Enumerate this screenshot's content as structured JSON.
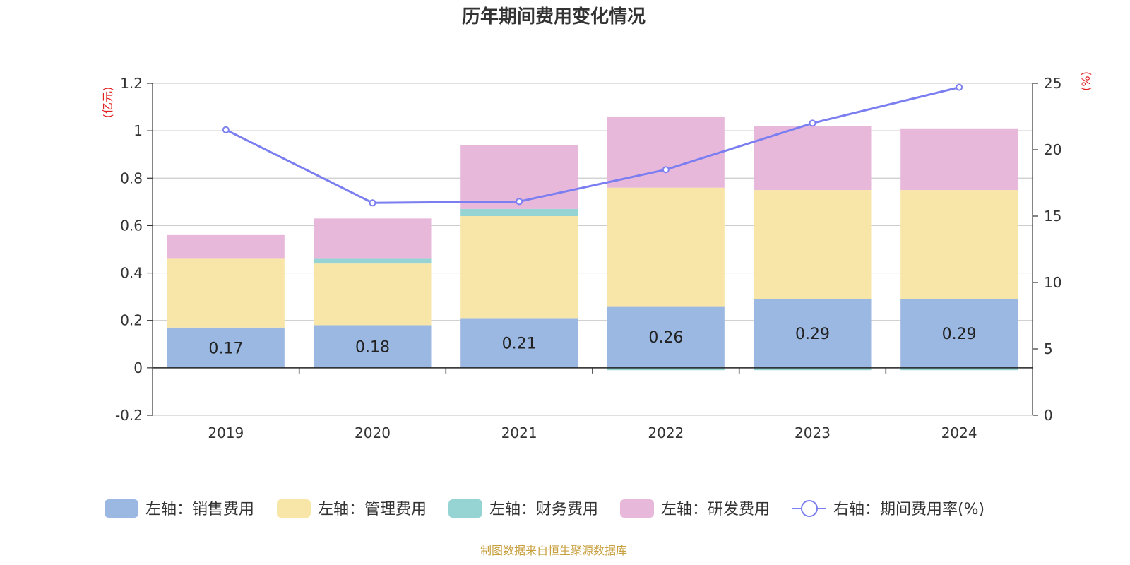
{
  "chart_data": {
    "type": "bar",
    "stacked": true,
    "title": "历年期间费用变化情况",
    "categories": [
      "2019",
      "2020",
      "2021",
      "2022",
      "2023",
      "2024"
    ],
    "left_axis": {
      "unit": "(亿元)",
      "ylim": [
        -0.2,
        1.2
      ],
      "ticks": [
        "-0.2",
        "0",
        "0.2",
        "0.4",
        "0.6",
        "0.8",
        "1",
        "1.2"
      ],
      "tick_values": [
        -0.2,
        0,
        0.2,
        0.4,
        0.6,
        0.8,
        1.0,
        1.2
      ]
    },
    "right_axis": {
      "unit": "(%)",
      "ylim": [
        0,
        25
      ],
      "ticks": [
        "0",
        "5",
        "10",
        "15",
        "20",
        "25"
      ],
      "tick_values": [
        0,
        5,
        10,
        15,
        20,
        25
      ]
    },
    "series": [
      {
        "name": "左轴：销售费用",
        "color": "#9bb8e2",
        "values": [
          0.17,
          0.18,
          0.21,
          0.26,
          0.29,
          0.29
        ],
        "labels": [
          "0.17",
          "0.18",
          "0.21",
          "0.26",
          "0.29",
          "0.29"
        ]
      },
      {
        "name": "左轴：管理费用",
        "color": "#f8e6a8",
        "values": [
          0.29,
          0.26,
          0.43,
          0.5,
          0.46,
          0.46
        ]
      },
      {
        "name": "左轴：财务费用",
        "color": "#96d4d4",
        "values": [
          0.0,
          0.02,
          0.03,
          -0.01,
          -0.01,
          -0.01
        ]
      },
      {
        "name": "左轴：研发费用",
        "color": "#e8b8da",
        "values": [
          0.1,
          0.17,
          0.27,
          0.3,
          0.27,
          0.26
        ]
      }
    ],
    "line": {
      "name": "右轴：期间费用率(%)",
      "color": "#7b7ef0",
      "values": [
        21.5,
        16.0,
        16.1,
        18.5,
        22.0,
        24.7
      ]
    },
    "grid": true,
    "legend_position": "bottom"
  },
  "source_note": "制图数据来自恒生聚源数据库"
}
